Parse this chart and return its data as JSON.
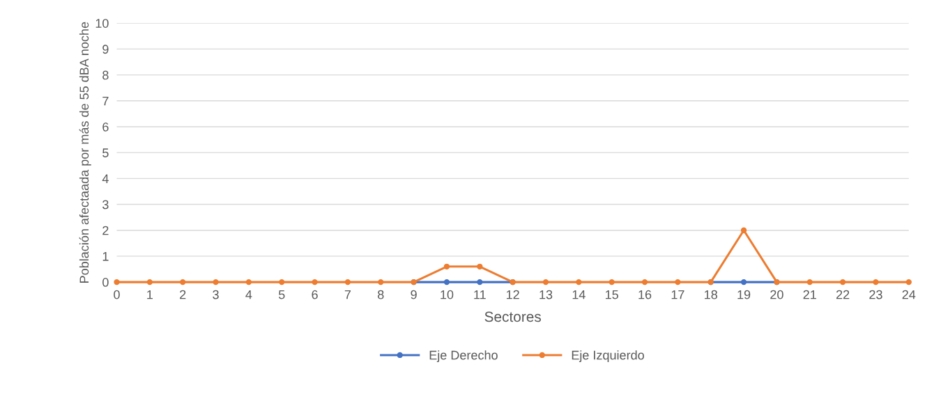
{
  "chart_data": {
    "type": "line",
    "xlabel": "Sectores",
    "ylabel": "Población afectaada por más de 55 dBA noche",
    "x": [
      0,
      1,
      2,
      3,
      4,
      5,
      6,
      7,
      8,
      9,
      10,
      11,
      12,
      13,
      14,
      15,
      16,
      17,
      18,
      19,
      20,
      21,
      22,
      23,
      24
    ],
    "xlim": [
      0,
      24
    ],
    "xticks": [
      0,
      1,
      2,
      3,
      4,
      5,
      6,
      7,
      8,
      9,
      10,
      11,
      12,
      13,
      14,
      15,
      16,
      17,
      18,
      19,
      20,
      21,
      22,
      23,
      24
    ],
    "ylim": [
      0,
      10
    ],
    "yticks": [
      0,
      1,
      2,
      3,
      4,
      5,
      6,
      7,
      8,
      9,
      10
    ],
    "grid": "y",
    "legend": "bottom",
    "marker": "circle",
    "line_style": "solid",
    "series": [
      {
        "name": "Eje Derecho",
        "color": "#4472c4",
        "values": [
          null,
          null,
          null,
          null,
          null,
          null,
          null,
          null,
          null,
          0,
          0,
          0,
          0,
          null,
          null,
          null,
          null,
          null,
          0,
          0,
          0,
          null,
          null,
          null,
          null
        ]
      },
      {
        "name": "Eje Izquierdo",
        "color": "#ed7d31",
        "values": [
          0,
          0,
          0,
          0,
          0,
          0,
          0,
          0,
          0,
          0,
          0.6,
          0.6,
          0,
          0,
          0,
          0,
          0,
          0,
          0,
          2,
          0,
          0,
          0,
          0,
          0
        ]
      }
    ]
  }
}
